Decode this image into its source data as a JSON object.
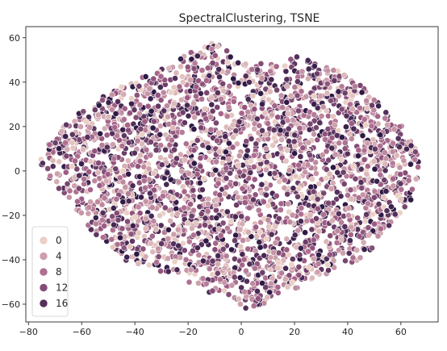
{
  "chart_data": {
    "type": "scatter",
    "title": "SpectralClustering, TSNE",
    "xlabel": "",
    "ylabel": "",
    "xlim": [
      -81,
      74
    ],
    "ylim": [
      -68,
      65
    ],
    "xticks": [
      -80,
      -60,
      -40,
      -20,
      0,
      20,
      40,
      60
    ],
    "yticks": [
      -60,
      -40,
      -20,
      0,
      20,
      40,
      60
    ],
    "grid": false,
    "legend_position": "lower-left",
    "hue_range": [
      0,
      19
    ],
    "legend": [
      {
        "label": "0",
        "value": 0
      },
      {
        "label": "4",
        "value": 4
      },
      {
        "label": "8",
        "value": 8
      },
      {
        "label": "12",
        "value": 12
      },
      {
        "label": "16",
        "value": 16
      }
    ],
    "colors": {
      "light": "#ebd0c6",
      "dark": "#2e1a46"
    },
    "cloud": {
      "approx_point_count": 3200,
      "x_range": [
        -76,
        68
      ],
      "y_range": [
        -63,
        58
      ],
      "upper_boundary": [
        [
          -76,
          5
        ],
        [
          -72,
          14
        ],
        [
          -65,
          22
        ],
        [
          -55,
          30
        ],
        [
          -45,
          38
        ],
        [
          -35,
          44
        ],
        [
          -25,
          50
        ],
        [
          -15,
          56
        ],
        [
          -8,
          57
        ],
        [
          0,
          50
        ],
        [
          10,
          47
        ],
        [
          20,
          50
        ],
        [
          28,
          51
        ],
        [
          35,
          45
        ],
        [
          45,
          40
        ],
        [
          55,
          26
        ],
        [
          62,
          18
        ],
        [
          68,
          5
        ]
      ],
      "lower_boundary": [
        [
          -76,
          5
        ],
        [
          -72,
          -4
        ],
        [
          -65,
          -12
        ],
        [
          -58,
          -24
        ],
        [
          -52,
          -32
        ],
        [
          -45,
          -40
        ],
        [
          -35,
          -45
        ],
        [
          -25,
          -46
        ],
        [
          -15,
          -52
        ],
        [
          -5,
          -58
        ],
        [
          0,
          -62
        ],
        [
          5,
          -62
        ],
        [
          12,
          -56
        ],
        [
          20,
          -52
        ],
        [
          28,
          -48
        ],
        [
          38,
          -42
        ],
        [
          45,
          -40
        ],
        [
          52,
          -30
        ],
        [
          58,
          -22
        ],
        [
          65,
          -10
        ],
        [
          68,
          5
        ]
      ]
    }
  }
}
